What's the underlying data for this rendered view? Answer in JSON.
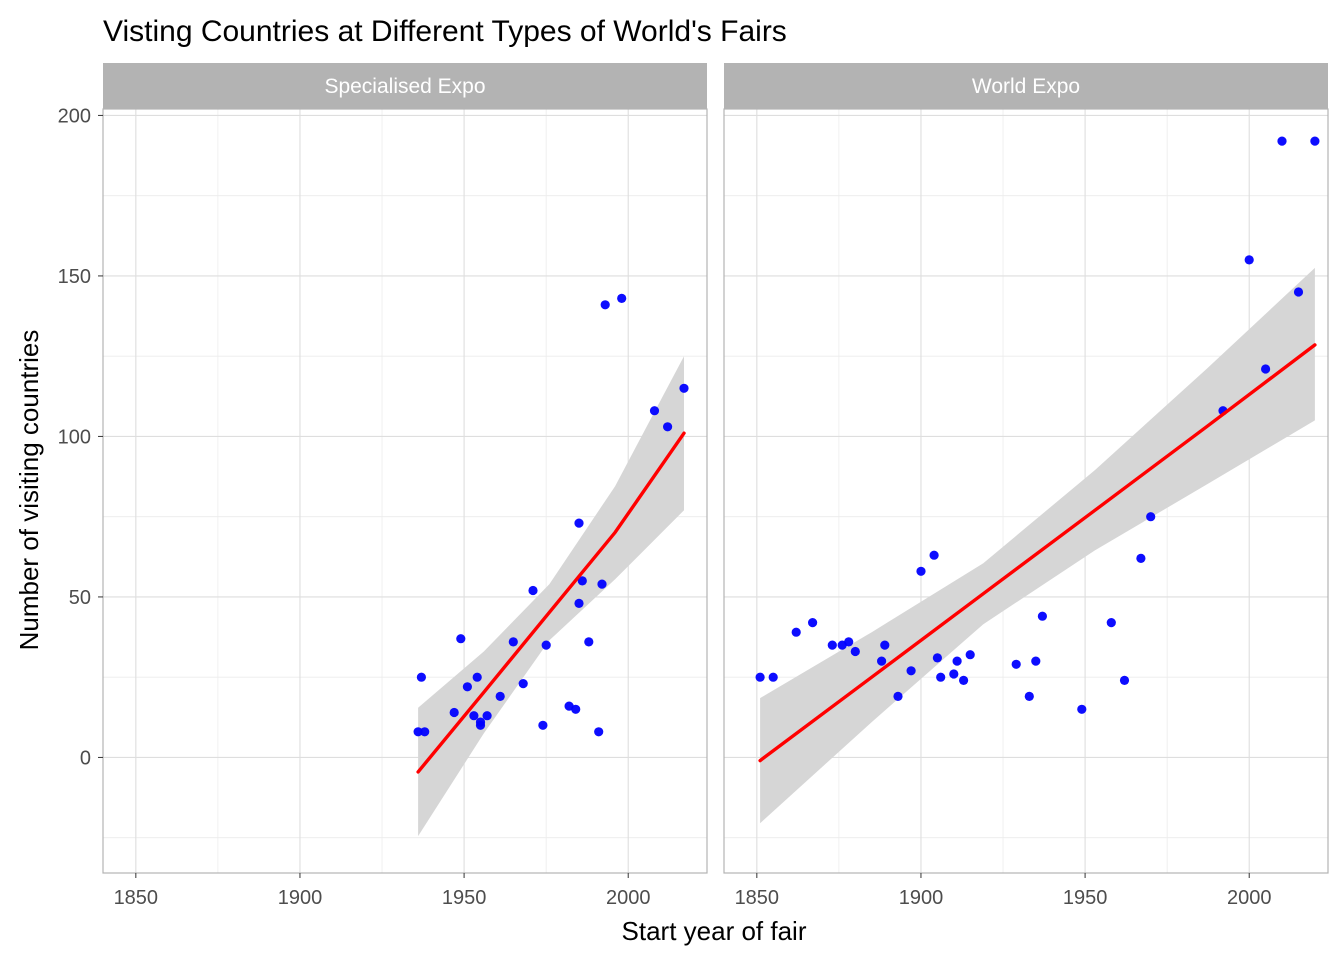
{
  "chart_data": {
    "type": "scatter",
    "title": "Visting Countries at Different Types of World's Fairs",
    "xlabel": "Start year of fair",
    "ylabel": "Number of visiting countries",
    "xlim": [
      1840,
      2024
    ],
    "ylim": [
      -36,
      202
    ],
    "x_ticks": [
      1850,
      1900,
      1950,
      2000
    ],
    "y_ticks": [
      0,
      50,
      100,
      150,
      200
    ],
    "point_color": "#0000ff",
    "fit_color": "#ff0000",
    "ribbon_color": "#d6d6d6",
    "strip_color": "#b3b3b3",
    "grid": true,
    "facets": [
      {
        "label": "Specialised Expo",
        "points": [
          [
            1936,
            8
          ],
          [
            1937,
            25
          ],
          [
            1938,
            8
          ],
          [
            1947,
            14
          ],
          [
            1949,
            37
          ],
          [
            1951,
            22
          ],
          [
            1953,
            13
          ],
          [
            1954,
            25
          ],
          [
            1955,
            11
          ],
          [
            1955,
            10
          ],
          [
            1957,
            13
          ],
          [
            1961,
            19
          ],
          [
            1965,
            36
          ],
          [
            1968,
            23
          ],
          [
            1971,
            52
          ],
          [
            1974,
            10
          ],
          [
            1975,
            35
          ],
          [
            1982,
            16
          ],
          [
            1984,
            15
          ],
          [
            1985,
            48
          ],
          [
            1985,
            73
          ],
          [
            1986,
            55
          ],
          [
            1988,
            36
          ],
          [
            1991,
            8
          ],
          [
            1992,
            54
          ],
          [
            1993,
            141
          ],
          [
            1998,
            143
          ],
          [
            2008,
            108
          ],
          [
            2012,
            103
          ],
          [
            2017,
            115
          ]
        ],
        "fit": {
          "x": [
            1936,
            1956,
            1976,
            1996,
            2017
          ],
          "y": [
            -4.5,
            20.3,
            45.2,
            70.1,
            101
          ],
          "lower": [
            -24.5,
            7.5,
            36.5,
            55.5,
            77
          ],
          "upper": [
            15.5,
            33.0,
            54.0,
            84.5,
            125
          ]
        }
      },
      {
        "label": "World Expo",
        "points": [
          [
            1851,
            25
          ],
          [
            1855,
            25
          ],
          [
            1862,
            39
          ],
          [
            1867,
            42
          ],
          [
            1873,
            35
          ],
          [
            1876,
            35
          ],
          [
            1878,
            36
          ],
          [
            1880,
            33
          ],
          [
            1888,
            30
          ],
          [
            1889,
            35
          ],
          [
            1893,
            19
          ],
          [
            1897,
            27
          ],
          [
            1900,
            58
          ],
          [
            1904,
            63
          ],
          [
            1905,
            31
          ],
          [
            1906,
            25
          ],
          [
            1910,
            26
          ],
          [
            1911,
            30
          ],
          [
            1913,
            24
          ],
          [
            1915,
            32
          ],
          [
            1929,
            29
          ],
          [
            1933,
            19
          ],
          [
            1935,
            30
          ],
          [
            1937,
            44
          ],
          [
            1949,
            15
          ],
          [
            1958,
            42
          ],
          [
            1962,
            24
          ],
          [
            1967,
            62
          ],
          [
            1970,
            75
          ],
          [
            1992,
            108
          ],
          [
            2000,
            155
          ],
          [
            2005,
            121
          ],
          [
            2010,
            192
          ],
          [
            2015,
            145
          ],
          [
            2020,
            192
          ]
        ],
        "fit": {
          "x": [
            1851,
            1885,
            1919,
            1953,
            1987,
            2020
          ],
          "y": [
            -1,
            25,
            51,
            77,
            103,
            128.5
          ],
          "lower": [
            -20.5,
            11,
            41.5,
            64.5,
            85,
            105
          ],
          "upper": [
            18.5,
            39,
            60.5,
            89.5,
            121,
            152.5
          ]
        }
      }
    ]
  }
}
